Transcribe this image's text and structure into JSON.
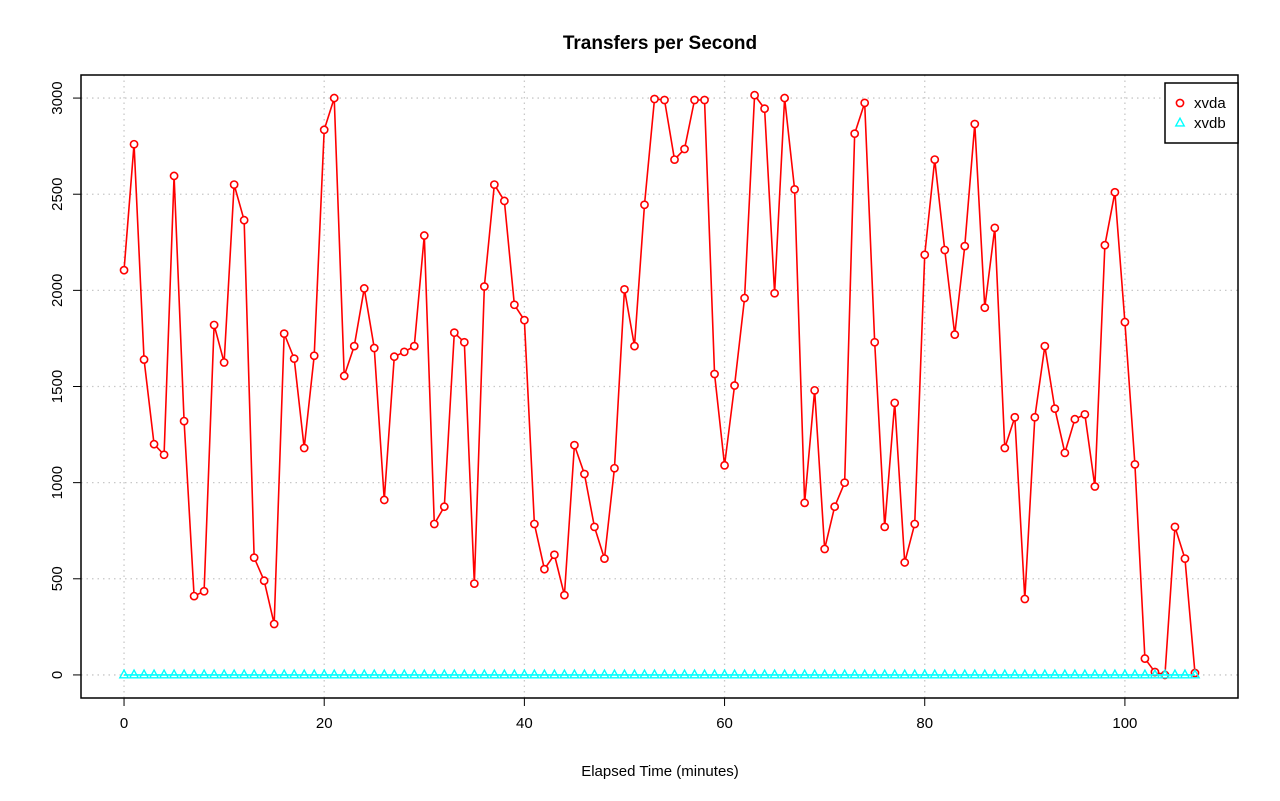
{
  "chart_data": {
    "type": "line",
    "title": "Transfers per Second",
    "xlabel": "Elapsed Time (minutes)",
    "ylabel": "",
    "xlim": [
      -4.3,
      111.3
    ],
    "ylim": [
      -120,
      3120
    ],
    "xticks": [
      0,
      20,
      40,
      60,
      80,
      100
    ],
    "yticks": [
      0,
      500,
      1000,
      1500,
      2000,
      2500,
      3000
    ],
    "grid": true,
    "legend_position": "top-right",
    "x": [
      0,
      1,
      2,
      3,
      4,
      5,
      6,
      7,
      8,
      9,
      10,
      11,
      12,
      13,
      14,
      15,
      16,
      17,
      18,
      19,
      20,
      21,
      22,
      23,
      24,
      25,
      26,
      27,
      28,
      29,
      30,
      31,
      32,
      33,
      34,
      35,
      36,
      37,
      38,
      39,
      40,
      41,
      42,
      43,
      44,
      45,
      46,
      47,
      48,
      49,
      50,
      51,
      52,
      53,
      54,
      55,
      56,
      57,
      58,
      59,
      60,
      61,
      62,
      63,
      64,
      65,
      66,
      67,
      68,
      69,
      70,
      71,
      72,
      73,
      74,
      75,
      76,
      77,
      78,
      79,
      80,
      81,
      82,
      83,
      84,
      85,
      86,
      87,
      88,
      89,
      90,
      91,
      92,
      93,
      94,
      95,
      96,
      97,
      98,
      99,
      100,
      101,
      102,
      103,
      104,
      105,
      106,
      107
    ],
    "series": [
      {
        "name": "xvda",
        "color": "#ff0000",
        "marker": "circle",
        "values": [
          2105,
          2760,
          1640,
          1200,
          1145,
          2595,
          1320,
          410,
          435,
          1820,
          1625,
          2550,
          2365,
          610,
          490,
          265,
          1775,
          1645,
          1180,
          1660,
          2835,
          3000,
          1555,
          1710,
          2010,
          1700,
          910,
          1655,
          1680,
          1710,
          2285,
          785,
          875,
          1780,
          1730,
          475,
          2020,
          2550,
          2465,
          1925,
          1845,
          785,
          550,
          625,
          415,
          1195,
          1045,
          770,
          605,
          1075,
          2005,
          1710,
          2445,
          2995,
          2990,
          2680,
          2735,
          2990,
          2990,
          1565,
          1090,
          1505,
          1960,
          3015,
          2945,
          1985,
          3000,
          2525,
          895,
          1480,
          655,
          875,
          1000,
          2815,
          2975,
          1730,
          770,
          1415,
          585,
          785,
          2185,
          2680,
          2210,
          1770,
          2230,
          2865,
          1910,
          2325,
          1180,
          1340,
          395,
          1340,
          1710,
          1385,
          1155,
          1330,
          1355,
          980,
          2235,
          2510,
          1835,
          1095,
          85,
          15,
          0,
          770,
          605,
          10
        ]
      },
      {
        "name": "xvdb",
        "color": "#00ffff",
        "marker": "triangle",
        "values": [
          0,
          0,
          0,
          0,
          0,
          0,
          0,
          0,
          0,
          0,
          0,
          0,
          0,
          0,
          0,
          0,
          0,
          0,
          0,
          0,
          0,
          0,
          0,
          0,
          0,
          0,
          0,
          0,
          0,
          0,
          0,
          0,
          0,
          0,
          0,
          0,
          0,
          0,
          0,
          0,
          0,
          0,
          0,
          0,
          0,
          0,
          0,
          0,
          0,
          0,
          0,
          0,
          0,
          0,
          0,
          0,
          0,
          0,
          0,
          0,
          0,
          0,
          0,
          0,
          0,
          0,
          0,
          0,
          0,
          0,
          0,
          0,
          0,
          0,
          0,
          0,
          0,
          0,
          0,
          0,
          0,
          0,
          0,
          0,
          0,
          0,
          0,
          0,
          0,
          0,
          0,
          0,
          0,
          0,
          0,
          0,
          0,
          0,
          0,
          0,
          0,
          0,
          0,
          0,
          0,
          0,
          0,
          0
        ]
      }
    ]
  }
}
